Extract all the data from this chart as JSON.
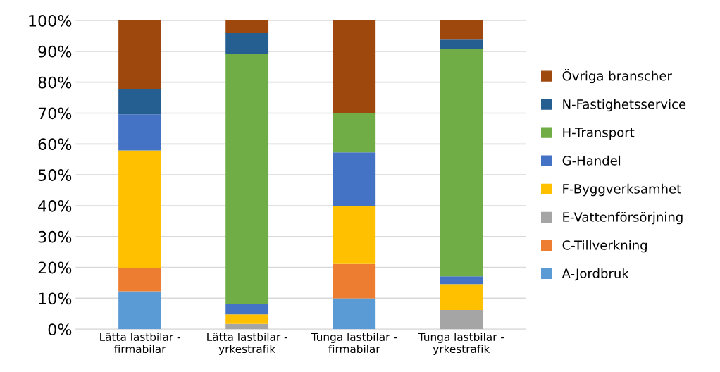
{
  "chart_data": {
    "type": "bar",
    "stacked": true,
    "categories": [
      "Lätta lastbilar -\nfirmabilar",
      "Lätta lastbilar -\nyrkestrafik",
      "Tunga lastbilar -\nfirmabilar",
      "Tunga lastbilar -\nyrkestrafik"
    ],
    "series": [
      {
        "name": "A-Jordbruk",
        "color": "#5b9bd5",
        "values": [
          12.3,
          0,
          10.0,
          0
        ]
      },
      {
        "name": "C-Tillverkning",
        "color": "#ed7d31",
        "values": [
          7.5,
          0,
          11.1,
          0
        ]
      },
      {
        "name": "E-Vattenförsörjning",
        "color": "#a5a5a5",
        "values": [
          0,
          1.7,
          0,
          6.2
        ]
      },
      {
        "name": "F-Byggverksamhet",
        "color": "#ffc000",
        "values": [
          38.1,
          3.1,
          18.9,
          8.4
        ]
      },
      {
        "name": "G-Handel",
        "color": "#4472c4",
        "values": [
          11.7,
          3.4,
          17.3,
          2.5
        ]
      },
      {
        "name": "H-Transport",
        "color": "#70ad47",
        "values": [
          0,
          81.0,
          12.7,
          73.8
        ]
      },
      {
        "name": "N-Fastighetsservice",
        "color": "#255e91",
        "values": [
          8.1,
          6.7,
          0,
          2.9
        ]
      },
      {
        "name": "Övriga branscher",
        "color": "#9e480e",
        "values": [
          22.3,
          4.1,
          30.0,
          6.2
        ]
      }
    ],
    "ylim": [
      0,
      100
    ],
    "yticks": [
      {
        "value": 0,
        "label": "0%"
      },
      {
        "value": 10,
        "label": "10%"
      },
      {
        "value": 20,
        "label": "20%"
      },
      {
        "value": 30,
        "label": "30%"
      },
      {
        "value": 40,
        "label": "40%"
      },
      {
        "value": 50,
        "label": "50%"
      },
      {
        "value": 60,
        "label": "60%"
      },
      {
        "value": 70,
        "label": "70%"
      },
      {
        "value": 80,
        "label": "80%"
      },
      {
        "value": 90,
        "label": "90%"
      },
      {
        "value": 100,
        "label": "100%"
      }
    ],
    "grid": "y",
    "legend": "right"
  }
}
